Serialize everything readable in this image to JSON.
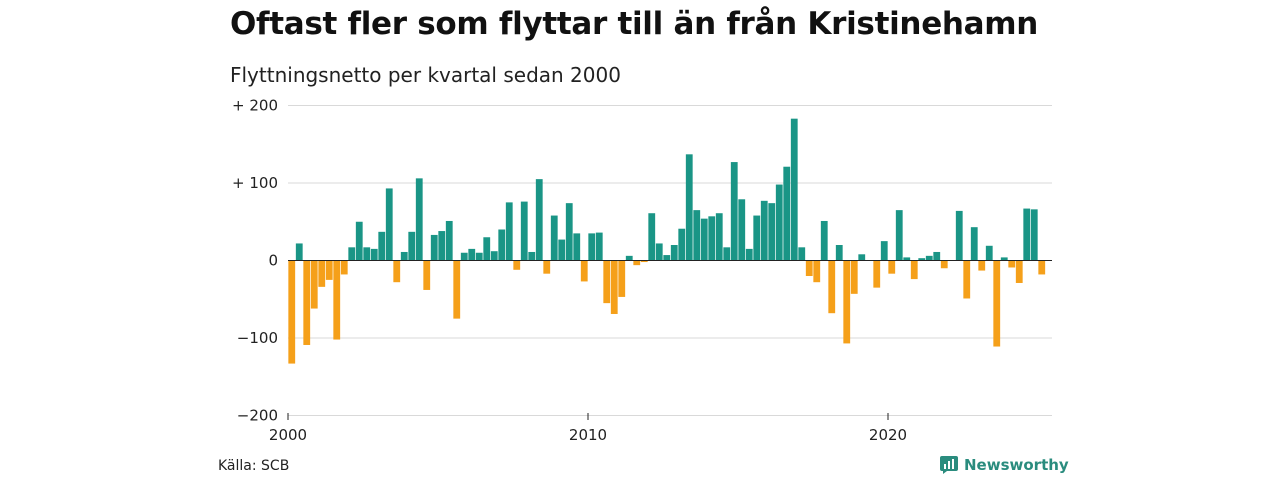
{
  "header": {
    "title": "Oftast fler som flyttar till än från Kristinehamn",
    "subtitle": "Flyttningsnetto per kvartal sedan 2000"
  },
  "footer": {
    "source": "Källa: SCB",
    "brand": "Newsworthy"
  },
  "colors": {
    "positive": "#1a9586",
    "negative": "#f5a01a",
    "grid": "#d9d9d9",
    "brand": "#2a8c7e"
  },
  "chart_data": {
    "type": "bar",
    "x_start": "2000 Q1",
    "x_ticks": [
      {
        "label": "2000",
        "year": 2000
      },
      {
        "label": "2010",
        "year": 2010
      },
      {
        "label": "2020",
        "year": 2020
      }
    ],
    "y_ticks": [
      {
        "label": "+ 200",
        "value": 200
      },
      {
        "label": "+ 100",
        "value": 100
      },
      {
        "label": "0",
        "value": 0
      },
      {
        "label": "−100",
        "value": -100
      },
      {
        "label": "−200",
        "value": -200
      }
    ],
    "ylim": [
      -200,
      200
    ],
    "grid": true,
    "values": [
      -133,
      22,
      -109,
      -62,
      -34,
      -25,
      -102,
      -18,
      17,
      50,
      17,
      15,
      37,
      93,
      -28,
      11,
      37,
      106,
      -38,
      33,
      38,
      51,
      -75,
      10,
      15,
      10,
      30,
      12,
      40,
      75,
      -12,
      76,
      11,
      105,
      -17,
      58,
      27,
      74,
      35,
      -27,
      35,
      36,
      -55,
      -69,
      -47,
      6,
      -6,
      -2,
      61,
      22,
      7,
      20,
      41,
      137,
      65,
      54,
      57,
      61,
      17,
      127,
      79,
      15,
      58,
      77,
      74,
      98,
      121,
      183,
      17,
      -20,
      -28,
      51,
      -68,
      20,
      -107,
      -43,
      8,
      0,
      -35,
      25,
      -17,
      65,
      4,
      -24,
      3,
      6,
      11,
      -10,
      0,
      64,
      -49,
      43,
      -13,
      19,
      -111,
      4,
      -9,
      -29,
      67,
      66,
      -18
    ]
  }
}
